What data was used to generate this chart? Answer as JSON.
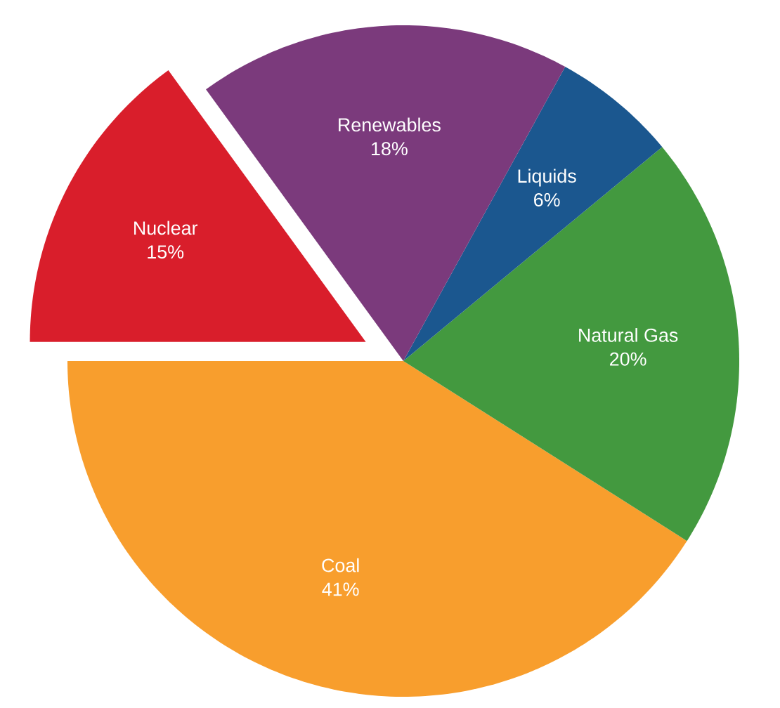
{
  "chart_data": {
    "type": "pie",
    "categories": [
      "Coal",
      "Natural Gas",
      "Liquids",
      "Renewables",
      "Nuclear"
    ],
    "values": [
      41,
      20,
      6,
      18,
      15
    ],
    "value_labels": [
      "41%",
      "20%",
      "6%",
      "18%",
      "15%"
    ],
    "colors": [
      "#f89e2d",
      "#43993f",
      "#1b578f",
      "#7b3a7c",
      "#d91e2b"
    ]
  }
}
